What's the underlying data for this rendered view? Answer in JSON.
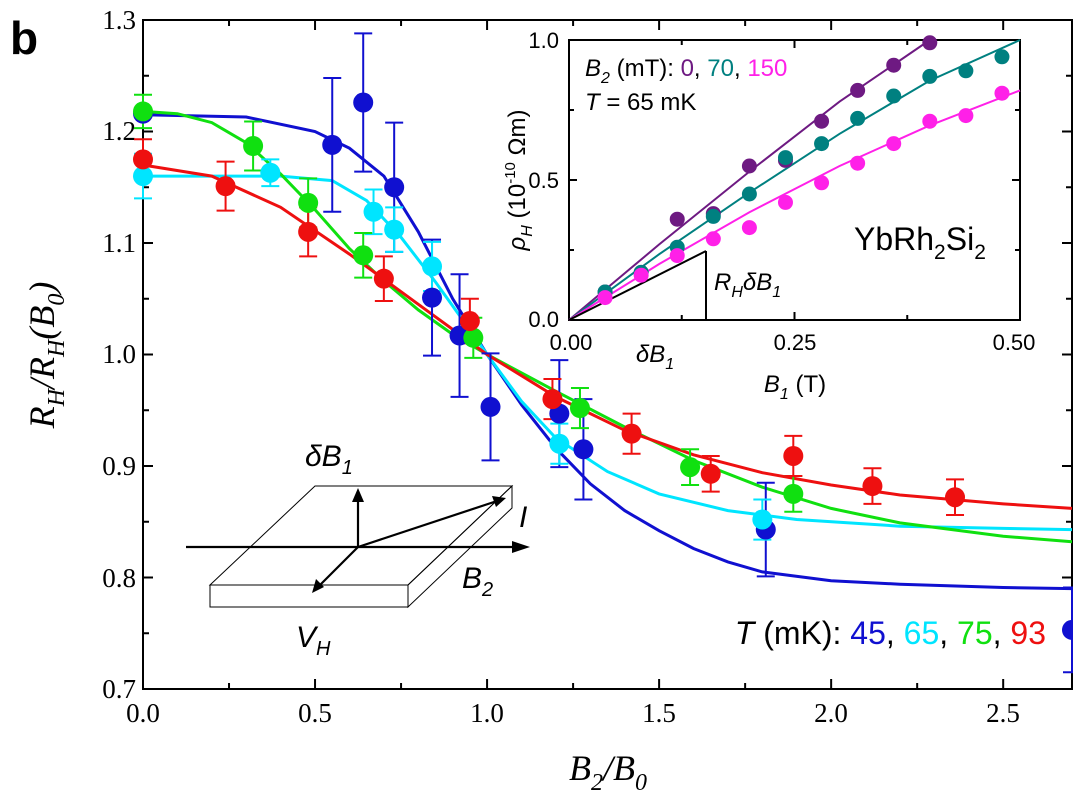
{
  "panel_label": "b",
  "colors": {
    "T45": "#1010d0",
    "T65": "#00e5ff",
    "T75": "#10e010",
    "T93": "#ee1010",
    "B0": "#6e1a82",
    "B70": "#008080",
    "B150": "#ff20e8",
    "axis": "#000000"
  },
  "main": {
    "x_tick_labels": [
      "0.0",
      "0.5",
      "1.0",
      "1.5",
      "2.0",
      "2.5"
    ],
    "y_tick_labels": [
      "0.7",
      "0.8",
      "0.9",
      "1.0",
      "1.1",
      "1.2",
      "1.3"
    ],
    "legend": {
      "prefix_var": "T",
      "prefix_unit": " (mK): ",
      "labels": [
        "45",
        "65",
        "75",
        "93"
      ]
    },
    "schematic": {
      "label_delta_B1": "δB",
      "label_delta_B1_sub": "1",
      "label_I": "I",
      "label_B2": "B",
      "label_B2_sub": "2",
      "label_VH": "V",
      "label_VH_sub": "H"
    }
  },
  "inset": {
    "x_tick_labels": [
      "0.00",
      "0.25",
      "0.50"
    ],
    "y_tick_labels": [
      "0.0",
      "0.5",
      "1.0"
    ],
    "x_extra_label": "δB",
    "x_extra_label_sub": "1",
    "xlabel": "B",
    "xlabel_sub": "1",
    "xlabel_unit": " (T)",
    "ylabel_var": "ρ",
    "ylabel_sub": "H",
    "ylabel_unit_a": " (10",
    "ylabel_exp": "-10",
    "ylabel_unit_b": " Ωm)",
    "legend_var": "B",
    "legend_sub": "2",
    "legend_unit": " (mT):  ",
    "legend_labels": [
      "0",
      "70",
      "150"
    ],
    "temp_var": "T",
    "temp_value": " = 65 mK",
    "material": "YbRh",
    "material_sub1": "2",
    "material_mid": "Si",
    "material_sub2": "2",
    "slope_label": "R",
    "slope_label_sub": "H",
    "slope_label_mid": "δB",
    "slope_label_sub2": "1"
  },
  "chart_data": [
    {
      "type": "scatter",
      "xlabel": "B2/B0",
      "ylabel": "RH/RH(B0)",
      "xlim": [
        0,
        2.7
      ],
      "ylim": [
        0.7,
        1.3
      ],
      "grid": false,
      "legend_placement": "bottom-right",
      "series": [
        {
          "name": "45",
          "color_key": "T45",
          "points": [
            [
              0.0,
              1.216,
              0.0
            ],
            [
              0.55,
              1.188,
              0.06
            ],
            [
              0.64,
              1.226,
              0.062
            ],
            [
              0.73,
              1.15,
              0.058
            ],
            [
              0.84,
              1.051,
              0.052
            ],
            [
              0.92,
              1.017,
              0.055
            ],
            [
              1.01,
              0.953,
              0.048
            ],
            [
              1.21,
              0.947,
              0.048
            ],
            [
              1.28,
              0.915,
              0.045
            ],
            [
              1.81,
              0.843,
              0.042
            ],
            [
              2.7,
              0.753,
              0.038
            ]
          ],
          "fit": [
            [
              0,
              1.215
            ],
            [
              0.3,
              1.213
            ],
            [
              0.5,
              1.2
            ],
            [
              0.6,
              1.185
            ],
            [
              0.7,
              1.16
            ],
            [
              0.8,
              1.11
            ],
            [
              0.9,
              1.05
            ],
            [
              1.0,
              1.0
            ],
            [
              1.1,
              0.955
            ],
            [
              1.2,
              0.916
            ],
            [
              1.3,
              0.884
            ],
            [
              1.4,
              0.86
            ],
            [
              1.5,
              0.842
            ],
            [
              1.6,
              0.826
            ],
            [
              1.7,
              0.814
            ],
            [
              1.8,
              0.805
            ],
            [
              2.0,
              0.797
            ],
            [
              2.2,
              0.794
            ],
            [
              2.5,
              0.791
            ],
            [
              2.7,
              0.79
            ]
          ]
        },
        {
          "name": "65",
          "color_key": "T65",
          "points": [
            [
              0.0,
              1.16,
              0.02
            ],
            [
              0.37,
              1.163,
              0.012
            ],
            [
              0.67,
              1.128,
              0.02
            ],
            [
              0.73,
              1.112,
              0.02
            ],
            [
              0.84,
              1.079,
              0.022
            ],
            [
              1.21,
              0.92,
              0.018
            ],
            [
              1.8,
              0.852,
              0.018
            ]
          ],
          "fit": [
            [
              0,
              1.16
            ],
            [
              0.4,
              1.16
            ],
            [
              0.55,
              1.156
            ],
            [
              0.65,
              1.138
            ],
            [
              0.75,
              1.105
            ],
            [
              0.85,
              1.065
            ],
            [
              0.95,
              1.022
            ],
            [
              1.0,
              1.0
            ],
            [
              1.1,
              0.958
            ],
            [
              1.2,
              0.925
            ],
            [
              1.35,
              0.895
            ],
            [
              1.5,
              0.875
            ],
            [
              1.7,
              0.86
            ],
            [
              1.9,
              0.852
            ],
            [
              2.2,
              0.846
            ],
            [
              2.5,
              0.844
            ],
            [
              2.7,
              0.843
            ]
          ]
        },
        {
          "name": "75",
          "color_key": "T75",
          "points": [
            [
              0.0,
              1.218,
              0.015
            ],
            [
              0.32,
              1.187,
              0.022
            ],
            [
              0.48,
              1.136,
              0.022
            ],
            [
              0.64,
              1.089,
              0.02
            ],
            [
              0.96,
              1.015,
              0.018
            ],
            [
              1.27,
              0.952,
              0.018
            ],
            [
              1.59,
              0.899,
              0.016
            ],
            [
              1.89,
              0.875,
              0.016
            ]
          ],
          "fit": [
            [
              0,
              1.218
            ],
            [
              0.1,
              1.216
            ],
            [
              0.2,
              1.208
            ],
            [
              0.3,
              1.19
            ],
            [
              0.4,
              1.162
            ],
            [
              0.5,
              1.13
            ],
            [
              0.6,
              1.095
            ],
            [
              0.7,
              1.066
            ],
            [
              0.8,
              1.04
            ],
            [
              0.9,
              1.018
            ],
            [
              1.0,
              1.0
            ],
            [
              1.2,
              0.967
            ],
            [
              1.4,
              0.935
            ],
            [
              1.6,
              0.905
            ],
            [
              1.8,
              0.881
            ],
            [
              2.0,
              0.862
            ],
            [
              2.2,
              0.849
            ],
            [
              2.5,
              0.837
            ],
            [
              2.7,
              0.832
            ]
          ]
        },
        {
          "name": "93",
          "color_key": "T93",
          "points": [
            [
              0.0,
              1.175,
              0.018
            ],
            [
              0.24,
              1.151,
              0.022
            ],
            [
              0.48,
              1.11,
              0.022
            ],
            [
              0.7,
              1.068,
              0.02
            ],
            [
              0.95,
              1.03,
              0.02
            ],
            [
              1.19,
              0.96,
              0.018
            ],
            [
              1.42,
              0.929,
              0.018
            ],
            [
              1.65,
              0.893,
              0.016
            ],
            [
              1.89,
              0.909,
              0.018
            ],
            [
              2.12,
              0.882,
              0.016
            ],
            [
              2.36,
              0.872,
              0.016
            ]
          ],
          "fit": [
            [
              0,
              1.17
            ],
            [
              0.2,
              1.16
            ],
            [
              0.4,
              1.132
            ],
            [
              0.6,
              1.09
            ],
            [
              0.8,
              1.045
            ],
            [
              1.0,
              1.0
            ],
            [
              1.2,
              0.962
            ],
            [
              1.4,
              0.932
            ],
            [
              1.6,
              0.91
            ],
            [
              1.8,
              0.894
            ],
            [
              2.0,
              0.883
            ],
            [
              2.2,
              0.874
            ],
            [
              2.5,
              0.866
            ],
            [
              2.7,
              0.862
            ]
          ]
        }
      ]
    },
    {
      "type": "scatter",
      "xlabel": "B1 (T)",
      "ylabel": "ρH (10^-10 Ωm)",
      "xlim": [
        0,
        0.5
      ],
      "ylim": [
        0,
        1.0
      ],
      "grid": false,
      "legend_placement": "top-left",
      "series": [
        {
          "name": "0",
          "color_key": "B0",
          "points": [
            [
              0.04,
              0.1
            ],
            [
              0.08,
              0.17
            ],
            [
              0.12,
              0.36
            ],
            [
              0.16,
              0.38
            ],
            [
              0.2,
              0.55
            ],
            [
              0.24,
              0.57
            ],
            [
              0.28,
              0.71
            ],
            [
              0.32,
              0.82
            ],
            [
              0.36,
              0.91
            ],
            [
              0.4,
              0.99
            ]
          ],
          "fit": [
            [
              0,
              0
            ],
            [
              0.1,
              0.27
            ],
            [
              0.2,
              0.53
            ],
            [
              0.3,
              0.78
            ],
            [
              0.4,
              1.0
            ]
          ]
        },
        {
          "name": "70",
          "color_key": "B70",
          "points": [
            [
              0.04,
              0.1
            ],
            [
              0.08,
              0.17
            ],
            [
              0.12,
              0.26
            ],
            [
              0.16,
              0.37
            ],
            [
              0.2,
              0.45
            ],
            [
              0.24,
              0.58
            ],
            [
              0.28,
              0.63
            ],
            [
              0.32,
              0.72
            ],
            [
              0.36,
              0.8
            ],
            [
              0.4,
              0.87
            ],
            [
              0.44,
              0.89
            ],
            [
              0.48,
              0.94
            ]
          ],
          "fit": [
            [
              0,
              0
            ],
            [
              0.1,
              0.235
            ],
            [
              0.2,
              0.455
            ],
            [
              0.3,
              0.665
            ],
            [
              0.4,
              0.855
            ],
            [
              0.5,
              1.0
            ]
          ]
        },
        {
          "name": "150",
          "color_key": "B150",
          "points": [
            [
              0.04,
              0.08
            ],
            [
              0.08,
              0.16
            ],
            [
              0.12,
              0.23
            ],
            [
              0.16,
              0.29
            ],
            [
              0.2,
              0.33
            ],
            [
              0.24,
              0.42
            ],
            [
              0.28,
              0.49
            ],
            [
              0.32,
              0.56
            ],
            [
              0.36,
              0.63
            ],
            [
              0.4,
              0.71
            ],
            [
              0.44,
              0.73
            ],
            [
              0.48,
              0.81
            ]
          ],
          "fit": [
            [
              0,
              0
            ],
            [
              0.1,
              0.2
            ],
            [
              0.2,
              0.385
            ],
            [
              0.3,
              0.55
            ],
            [
              0.4,
              0.695
            ],
            [
              0.5,
              0.82
            ]
          ]
        }
      ]
    }
  ]
}
